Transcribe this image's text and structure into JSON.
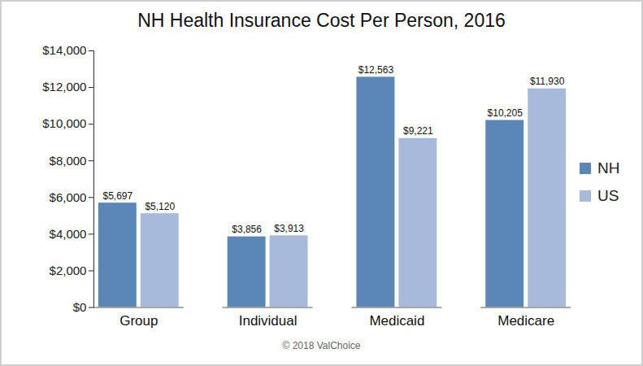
{
  "chart_data": {
    "type": "bar",
    "title": "NH Health Insurance Cost Per Person, 2016",
    "caption": "© 2018 ValChoice",
    "categories": [
      "Group",
      "Individual",
      "Medicaid",
      "Medicare"
    ],
    "series": [
      {
        "name": "NH",
        "color": "#5b87b8",
        "values": [
          5697,
          3856,
          12563,
          10205
        ],
        "value_labels": [
          "$5,697",
          "$3,856",
          "$12,563",
          "$10,205"
        ]
      },
      {
        "name": "US",
        "color": "#a8badb",
        "values": [
          5120,
          3913,
          9221,
          11930
        ],
        "value_labels": [
          "$5,120",
          "$3,913",
          "$9,221",
          "$11,930"
        ]
      }
    ],
    "ylim": [
      0,
      14000
    ],
    "yticks": [
      {
        "value": 0,
        "label": "$0"
      },
      {
        "value": 2000,
        "label": "$2,000"
      },
      {
        "value": 4000,
        "label": "$4,000"
      },
      {
        "value": 6000,
        "label": "$6,000"
      },
      {
        "value": 8000,
        "label": "$8,000"
      },
      {
        "value": 10000,
        "label": "$10,000"
      },
      {
        "value": 12000,
        "label": "$12,000"
      },
      {
        "value": 14000,
        "label": "$14,000"
      }
    ],
    "grid": false,
    "legend": "right",
    "data_labels": true
  }
}
